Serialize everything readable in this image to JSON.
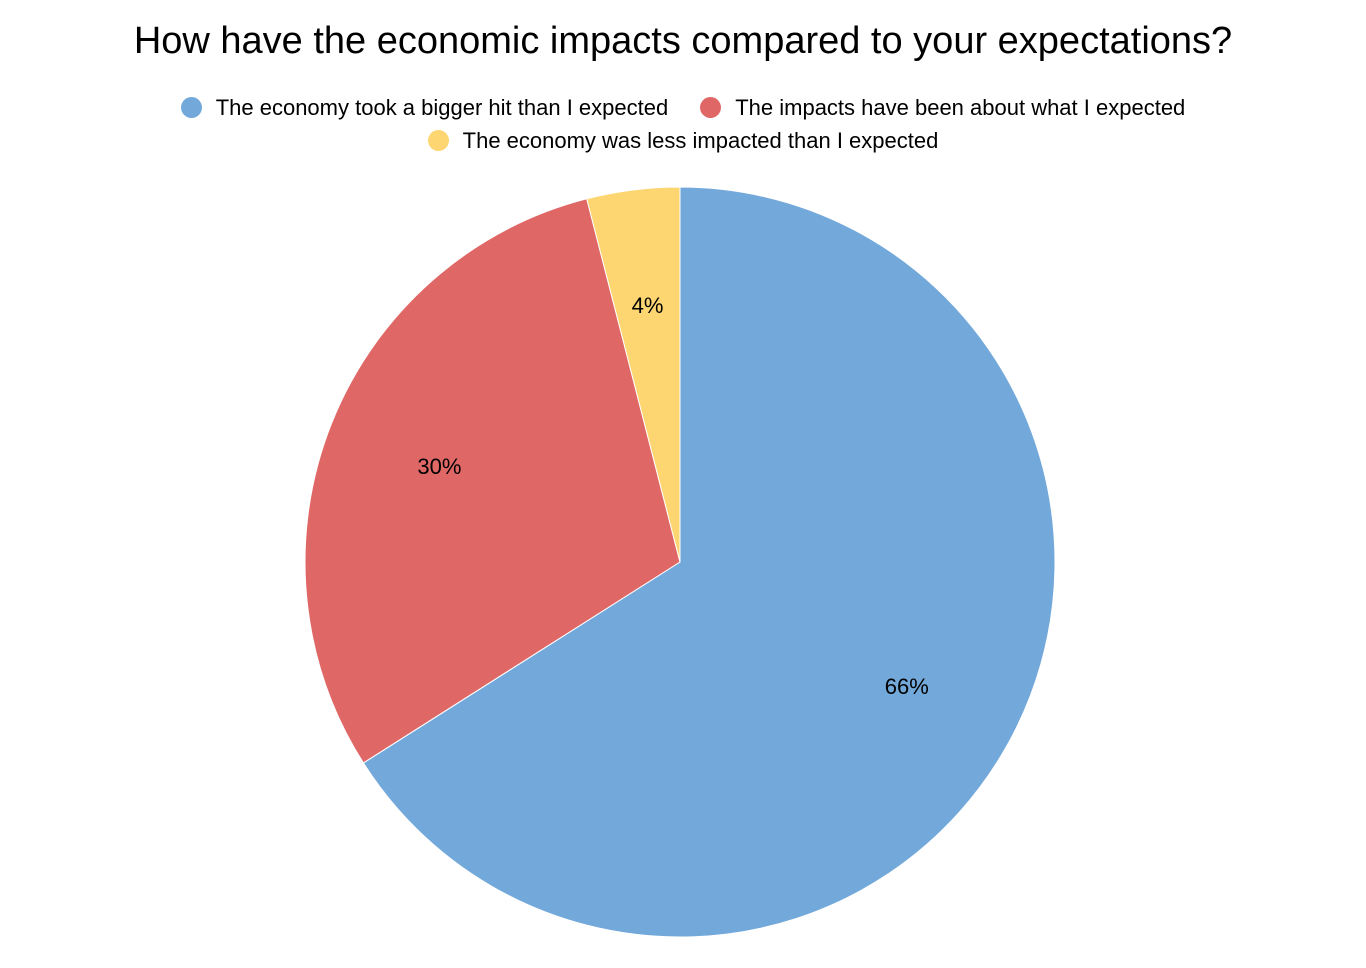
{
  "chart_data": {
    "type": "pie",
    "title": "How have the economic impacts compared to your expectations?",
    "slices": [
      {
        "label": "The economy took a bigger hit than I expected",
        "value": 66,
        "display": "66%",
        "color": "#72a8da"
      },
      {
        "label": "The impacts have been about what I expected",
        "value": 30,
        "display": "30%",
        "color": "#df6867"
      },
      {
        "label": "The economy was less impacted than I expected",
        "value": 4,
        "display": "4%",
        "color": "#fdd672"
      }
    ],
    "legend_position": "top",
    "start_angle": "12 o'clock",
    "direction": "clockwise"
  }
}
